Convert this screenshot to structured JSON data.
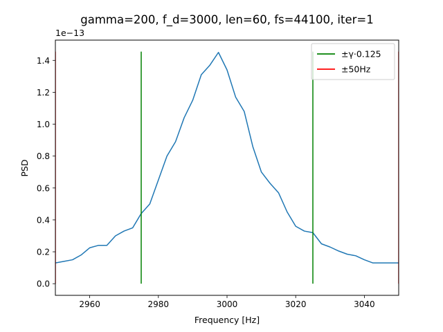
{
  "chart_data": {
    "type": "line",
    "title": "gamma=200, f_d=3000, len=60, fs=44100, iter=1",
    "xlabel": "Frequency [Hz]",
    "ylabel": "PSD",
    "y_offset_label": "1e−13",
    "xlim": [
      2950,
      3050
    ],
    "ylim": [
      -0.073,
      1.527
    ],
    "x_ticks": [
      2960,
      2980,
      3000,
      3020,
      3040
    ],
    "y_ticks": [
      0.0,
      0.2,
      0.4,
      0.6,
      0.8,
      1.0,
      1.2,
      1.4
    ],
    "x_tick_labels": [
      "2960",
      "2980",
      "3000",
      "3020",
      "3040"
    ],
    "y_tick_labels": [
      "0.0",
      "0.2",
      "0.4",
      "0.6",
      "0.8",
      "1.0",
      "1.2",
      "1.4"
    ],
    "grid": false,
    "legend_position": "top-right",
    "series": [
      {
        "color": "#1f77b4",
        "x": [
          2950,
          2952.5,
          2955,
          2957.5,
          2960,
          2962.5,
          2965,
          2967.5,
          2970,
          2972.5,
          2975,
          2977.5,
          2980,
          2982.5,
          2985,
          2987.5,
          2990,
          2992.5,
          2995,
          2997.5,
          3000,
          3002.5,
          3005,
          3007.5,
          3010,
          3012.5,
          3015,
          3017.5,
          3020,
          3022.5,
          3025,
          3027.5,
          3030,
          3032.5,
          3035,
          3037.5,
          3040,
          3042.5,
          3045,
          3047.5,
          3050
        ],
        "y": [
          0.13,
          0.14,
          0.15,
          0.18,
          0.225,
          0.24,
          0.24,
          0.3,
          0.33,
          0.35,
          0.44,
          0.5,
          0.65,
          0.8,
          0.89,
          1.04,
          1.15,
          1.31,
          1.37,
          1.45,
          1.34,
          1.17,
          1.08,
          0.86,
          0.7,
          0.63,
          0.57,
          0.45,
          0.36,
          0.33,
          0.32,
          0.25,
          0.23,
          0.205,
          0.185,
          0.175,
          0.15,
          0.13,
          0.13,
          0.13,
          0.13
        ]
      }
    ],
    "vlines": [
      {
        "name": "±γ·0.125",
        "color": "#008000",
        "x": [
          2975,
          3025
        ],
        "ymin": 0.0,
        "ymax": 1.455
      },
      {
        "name": "±50Hz",
        "color": "#ff0000",
        "x": [
          2950,
          3050
        ],
        "ymin": 0.0,
        "ymax": 1.455
      }
    ]
  }
}
